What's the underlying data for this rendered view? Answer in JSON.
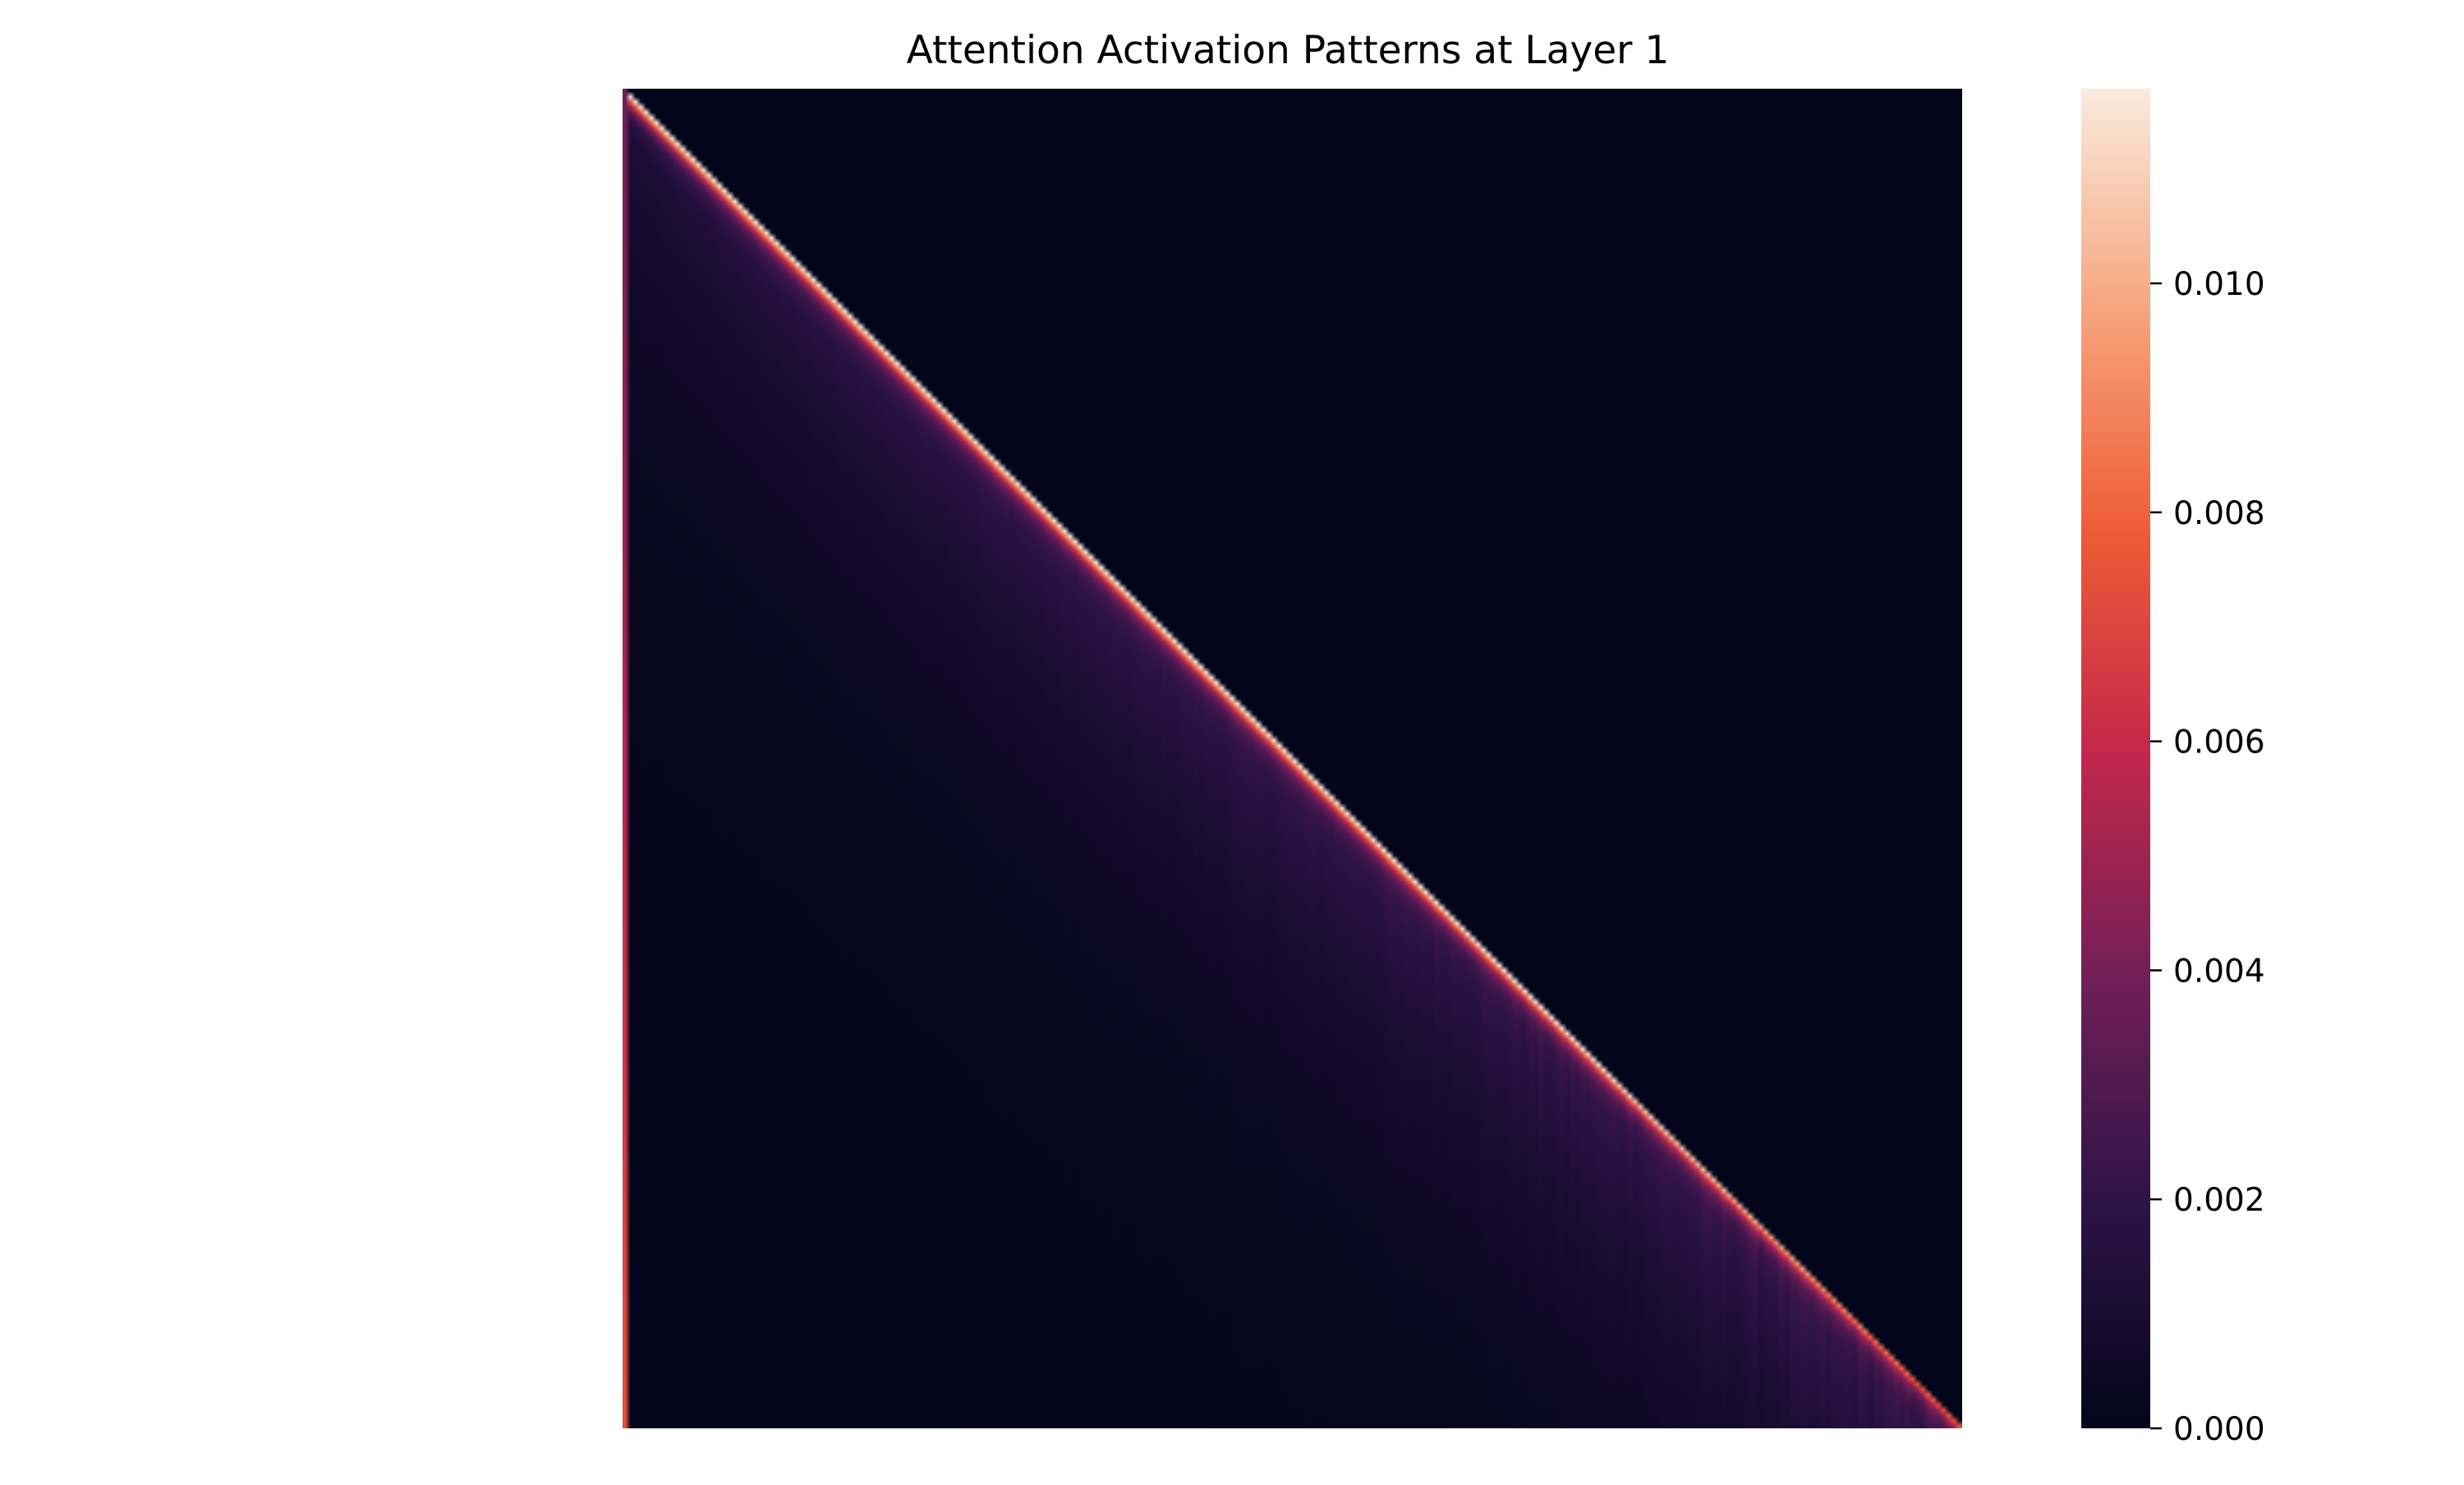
{
  "chart_data": {
    "type": "heatmap",
    "title": "Attention Activation Patterns at Layer 1",
    "structure": "causal lower-triangular attention matrix; upper triangle is zero",
    "n_tokens": 256,
    "diagonal_peak_value": 0.0115,
    "diagonal_value_at_last_row": 0.0048,
    "off_diagonal_typical_range": [
      0.0,
      0.003
    ],
    "colormap": "rocket",
    "colormap_stops": [
      "#03051a",
      "#2d1346",
      "#701f57",
      "#c1274c",
      "#ee5a36",
      "#f6a47c",
      "#faebdd"
    ],
    "colorbar": {
      "min": 0.0,
      "max": 0.0117,
      "ticks": [
        0.0,
        0.002,
        0.004,
        0.006,
        0.008,
        0.01
      ],
      "tick_labels": [
        "0.000",
        "0.002",
        "0.004",
        "0.006",
        "0.008",
        "0.010"
      ]
    },
    "xlabel": "",
    "ylabel": ""
  }
}
